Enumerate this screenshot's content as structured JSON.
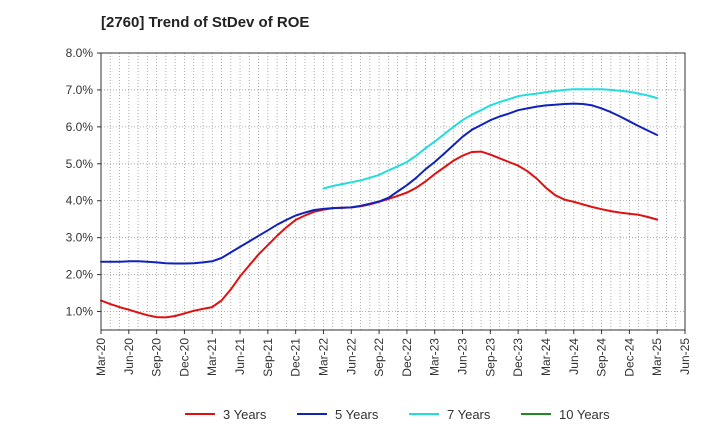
{
  "chart_data": {
    "type": "line",
    "title": "[2760]  Trend of StDev of ROE",
    "xlabel": "",
    "ylabel": "",
    "x_ticks": [
      "Mar-20",
      "Jun-20",
      "Sep-20",
      "Dec-20",
      "Mar-21",
      "Jun-21",
      "Sep-21",
      "Dec-21",
      "Mar-22",
      "Jun-22",
      "Sep-22",
      "Dec-22",
      "Mar-23",
      "Jun-23",
      "Sep-23",
      "Dec-23",
      "Mar-24",
      "Jun-24",
      "Sep-24",
      "Dec-24",
      "Mar-25",
      "Jun-25"
    ],
    "y_ticks": [
      "1.0%",
      "2.0%",
      "3.0%",
      "4.0%",
      "5.0%",
      "6.0%",
      "7.0%",
      "8.0%"
    ],
    "ylim": [
      0.5,
      8.0
    ],
    "y_unit": "%",
    "grid": true,
    "legend_position": "bottom",
    "series": [
      {
        "name": "3 Years",
        "color": "#dd1111",
        "x": [
          "Mar-20",
          "Apr-20",
          "May-20",
          "Jun-20",
          "Jul-20",
          "Aug-20",
          "Sep-20",
          "Oct-20",
          "Nov-20",
          "Dec-20",
          "Jan-21",
          "Feb-21",
          "Mar-21",
          "Apr-21",
          "May-21",
          "Jun-21",
          "Jul-21",
          "Aug-21",
          "Sep-21",
          "Oct-21",
          "Nov-21",
          "Dec-21",
          "Jan-22",
          "Feb-22",
          "Mar-22",
          "Apr-22",
          "May-22",
          "Jun-22",
          "Jul-22",
          "Aug-22",
          "Sep-22",
          "Oct-22",
          "Nov-22",
          "Dec-22",
          "Jan-23",
          "Feb-23",
          "Mar-23",
          "Apr-23",
          "May-23",
          "Jun-23",
          "Jul-23",
          "Aug-23",
          "Sep-23",
          "Oct-23",
          "Nov-23",
          "Dec-23",
          "Jan-24",
          "Feb-24",
          "Mar-24",
          "Apr-24",
          "May-24",
          "Jun-24",
          "Jul-24",
          "Aug-24",
          "Sep-24",
          "Oct-24",
          "Nov-24",
          "Dec-24",
          "Jan-25",
          "Feb-25",
          "Mar-25"
        ],
        "values": [
          1.3,
          1.2,
          1.12,
          1.05,
          0.97,
          0.9,
          0.85,
          0.84,
          0.88,
          0.95,
          1.02,
          1.07,
          1.12,
          1.3,
          1.6,
          1.95,
          2.25,
          2.55,
          2.8,
          3.05,
          3.28,
          3.48,
          3.6,
          3.7,
          3.76,
          3.8,
          3.81,
          3.82,
          3.85,
          3.9,
          3.97,
          4.05,
          4.13,
          4.22,
          4.35,
          4.52,
          4.72,
          4.9,
          5.08,
          5.22,
          5.32,
          5.33,
          5.25,
          5.15,
          5.05,
          4.95,
          4.8,
          4.6,
          4.35,
          4.15,
          4.03,
          3.97,
          3.9,
          3.83,
          3.77,
          3.72,
          3.68,
          3.65,
          3.62,
          3.56,
          3.49
        ]
      },
      {
        "name": "5 Years",
        "color": "#1122bb",
        "x": [
          "Mar-20",
          "Apr-20",
          "May-20",
          "Jun-20",
          "Jul-20",
          "Aug-20",
          "Sep-20",
          "Oct-20",
          "Nov-20",
          "Dec-20",
          "Jan-21",
          "Feb-21",
          "Mar-21",
          "Apr-21",
          "May-21",
          "Jun-21",
          "Jul-21",
          "Aug-21",
          "Sep-21",
          "Oct-21",
          "Nov-21",
          "Dec-21",
          "Jan-22",
          "Feb-22",
          "Mar-22",
          "Apr-22",
          "May-22",
          "Jun-22",
          "Jul-22",
          "Aug-22",
          "Sep-22",
          "Oct-22",
          "Nov-22",
          "Dec-22",
          "Jan-23",
          "Feb-23",
          "Mar-23",
          "Apr-23",
          "May-23",
          "Jun-23",
          "Jul-23",
          "Aug-23",
          "Sep-23",
          "Oct-23",
          "Nov-23",
          "Dec-23",
          "Jan-24",
          "Feb-24",
          "Mar-24",
          "Apr-24",
          "May-24",
          "Jun-24",
          "Jul-24",
          "Aug-24",
          "Sep-24",
          "Oct-24",
          "Nov-24",
          "Dec-24",
          "Jan-25",
          "Feb-25",
          "Mar-25"
        ],
        "values": [
          2.35,
          2.35,
          2.35,
          2.36,
          2.36,
          2.35,
          2.33,
          2.31,
          2.3,
          2.3,
          2.31,
          2.33,
          2.36,
          2.45,
          2.6,
          2.75,
          2.9,
          3.05,
          3.2,
          3.35,
          3.48,
          3.6,
          3.68,
          3.75,
          3.78,
          3.8,
          3.81,
          3.82,
          3.86,
          3.92,
          3.98,
          4.08,
          4.25,
          4.42,
          4.62,
          4.85,
          5.05,
          5.27,
          5.5,
          5.73,
          5.92,
          6.05,
          6.18,
          6.28,
          6.36,
          6.45,
          6.5,
          6.55,
          6.58,
          6.6,
          6.62,
          6.63,
          6.62,
          6.58,
          6.5,
          6.4,
          6.28,
          6.15,
          6.02,
          5.9,
          5.78
        ]
      },
      {
        "name": "7 Years",
        "color": "#22dddd",
        "x": [
          "Mar-22",
          "Apr-22",
          "May-22",
          "Jun-22",
          "Jul-22",
          "Aug-22",
          "Sep-22",
          "Oct-22",
          "Nov-22",
          "Dec-22",
          "Jan-23",
          "Feb-23",
          "Mar-23",
          "Apr-23",
          "May-23",
          "Jun-23",
          "Jul-23",
          "Aug-23",
          "Sep-23",
          "Oct-23",
          "Nov-23",
          "Dec-23",
          "Jan-24",
          "Feb-24",
          "Mar-24",
          "Apr-24",
          "May-24",
          "Jun-24",
          "Jul-24",
          "Aug-24",
          "Sep-24",
          "Oct-24",
          "Nov-24",
          "Dec-24",
          "Jan-25",
          "Feb-25",
          "Mar-25"
        ],
        "values": [
          4.33,
          4.4,
          4.45,
          4.5,
          4.55,
          4.62,
          4.7,
          4.82,
          4.93,
          5.05,
          5.22,
          5.42,
          5.6,
          5.8,
          6.0,
          6.18,
          6.33,
          6.45,
          6.58,
          6.67,
          6.75,
          6.83,
          6.87,
          6.9,
          6.94,
          6.97,
          7.0,
          7.02,
          7.02,
          7.02,
          7.02,
          7.0,
          6.98,
          6.95,
          6.9,
          6.85,
          6.78
        ]
      },
      {
        "name": "10 Years",
        "color": "#228822",
        "x": [],
        "values": []
      }
    ]
  }
}
